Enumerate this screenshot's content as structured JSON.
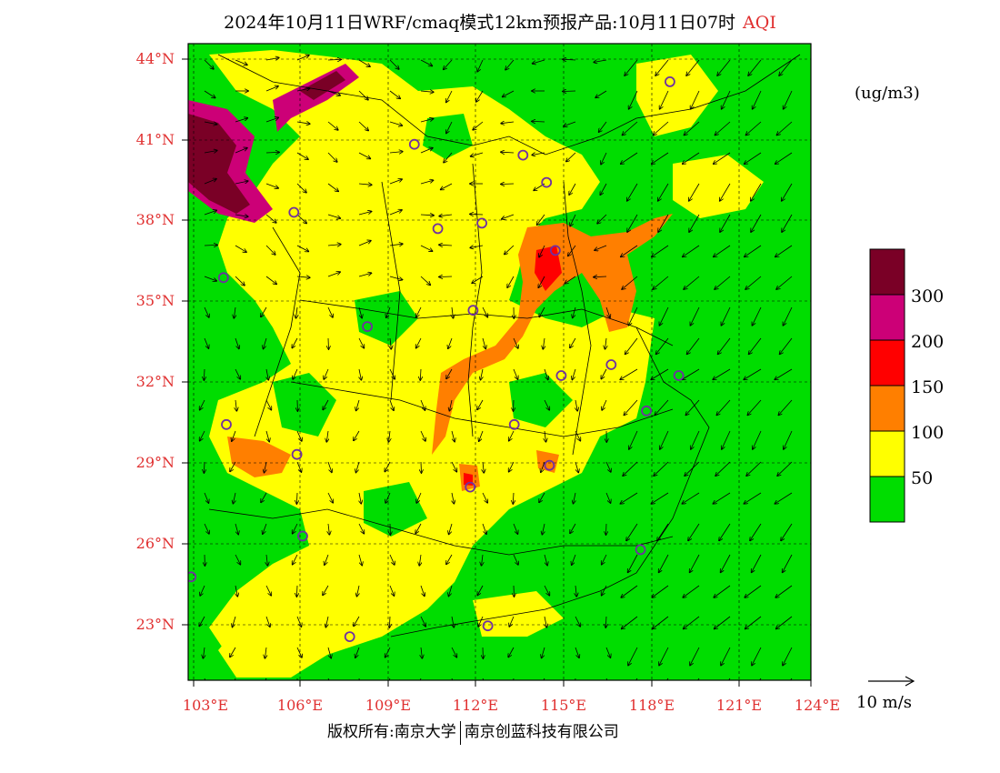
{
  "title": {
    "main": "2024年10月11日WRF/cmaq模式12km预报产品:10月11日07时",
    "species": "AQI"
  },
  "colors": {
    "label_red": "#e03030",
    "level_green": "#00dd00",
    "level_yellow": "#ffff00",
    "level_orange": "#ff7f00",
    "level_red": "#ff0000",
    "level_magenta": "#cc0077",
    "level_maroon": "#7a0026",
    "city_marker": "#7030a0"
  },
  "map": {
    "lat_labels": [
      "44°N",
      "41°N",
      "38°N",
      "35°N",
      "32°N",
      "29°N",
      "26°N",
      "23°N"
    ],
    "lon_labels": [
      "103°E",
      "106°E",
      "109°E",
      "112°E",
      "115°E",
      "118°E",
      "121°E",
      "124°E"
    ],
    "lat_ticks": [
      44,
      41,
      38,
      35,
      32,
      29,
      26,
      23
    ],
    "lon_ticks": [
      103,
      106,
      109,
      112,
      115,
      118,
      121,
      124
    ],
    "lon_range": [
      102.8,
      124
    ],
    "lat_range": [
      21.2,
      44.6
    ],
    "cities": [
      [
        119.2,
        43.2
      ],
      [
        110.5,
        40.9
      ],
      [
        114.2,
        40.5
      ],
      [
        115.0,
        39.5
      ],
      [
        106.4,
        38.4
      ],
      [
        111.3,
        37.8
      ],
      [
        112.8,
        38.0
      ],
      [
        115.3,
        37.0
      ],
      [
        104.0,
        36.0
      ],
      [
        112.5,
        34.8
      ],
      [
        108.9,
        34.2
      ],
      [
        115.5,
        32.4
      ],
      [
        117.2,
        32.8
      ],
      [
        119.5,
        32.4
      ],
      [
        118.4,
        31.1
      ],
      [
        113.9,
        30.6
      ],
      [
        104.1,
        30.6
      ],
      [
        106.5,
        29.5
      ],
      [
        115.1,
        29.1
      ],
      [
        112.4,
        28.3
      ],
      [
        106.7,
        26.5
      ],
      [
        118.2,
        26.0
      ],
      [
        102.9,
        25.0
      ],
      [
        108.3,
        22.8
      ],
      [
        113.0,
        23.2
      ]
    ]
  },
  "colorbar": {
    "unit": "(ug/m3)",
    "ticks": [
      "300",
      "200",
      "150",
      "100",
      "50"
    ]
  },
  "wind_reference": {
    "label": "10 m/s"
  },
  "footer": {
    "left": "版权所有:南京大学",
    "right": "南京创蓝科技有限公司"
  }
}
